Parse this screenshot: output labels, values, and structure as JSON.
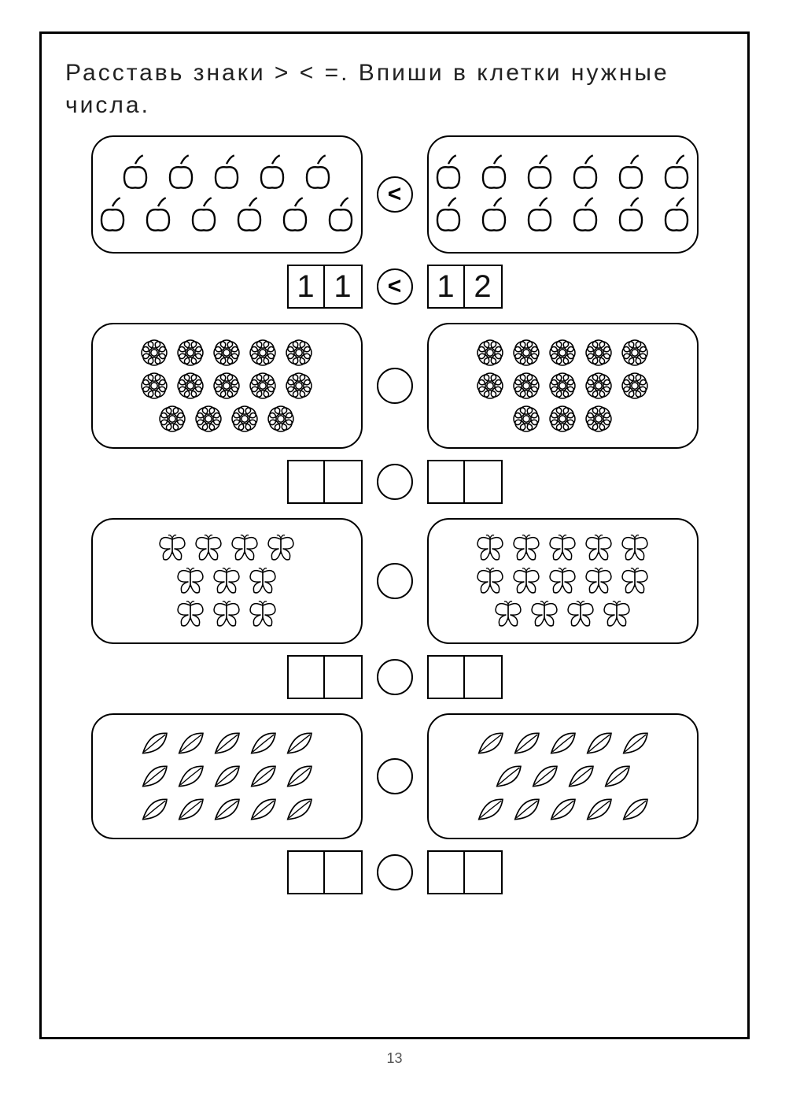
{
  "page_number": "13",
  "instruction": "Расставь знаки > < =. Впиши в клетки нужные числа.",
  "stroke_color": "#000000",
  "background_color": "#ffffff",
  "rows": [
    {
      "icon": "apple",
      "left_rows": [
        5,
        6
      ],
      "right_rows": [
        6,
        6
      ],
      "sign": "<",
      "num_left": [
        "1",
        "1"
      ],
      "num_right": [
        "1",
        "2"
      ],
      "num_sign": "<"
    },
    {
      "icon": "flower",
      "left_rows": [
        5,
        5,
        4
      ],
      "right_rows": [
        5,
        5,
        3
      ],
      "sign": "",
      "num_left": [
        "",
        ""
      ],
      "num_right": [
        "",
        ""
      ],
      "num_sign": ""
    },
    {
      "icon": "butterfly",
      "left_rows": [
        4,
        3,
        3
      ],
      "right_rows": [
        5,
        5,
        4
      ],
      "sign": "",
      "num_left": [
        "",
        ""
      ],
      "num_right": [
        "",
        ""
      ],
      "num_sign": ""
    },
    {
      "icon": "leaf",
      "left_rows": [
        5,
        5,
        5
      ],
      "right_rows": [
        5,
        4,
        5
      ],
      "sign": "",
      "num_left": [
        "",
        ""
      ],
      "num_right": [
        "",
        ""
      ],
      "num_sign": ""
    }
  ]
}
